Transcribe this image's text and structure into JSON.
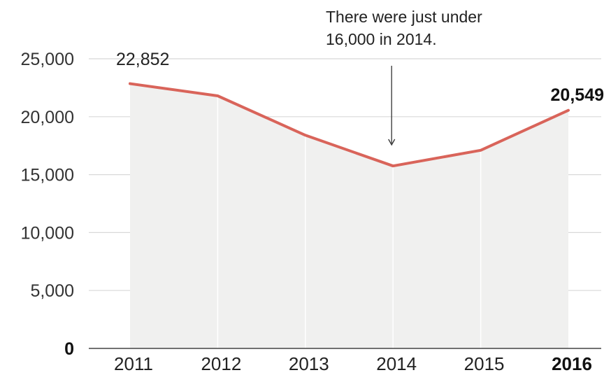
{
  "chart_data": {
    "type": "area",
    "title": "",
    "xlabel": "",
    "ylabel": "",
    "x": [
      2011,
      2012,
      2013,
      2014,
      2015,
      2016
    ],
    "categories": [
      "2011",
      "2012",
      "2013",
      "2014",
      "2015",
      "2016"
    ],
    "values": [
      22852,
      21800,
      18400,
      15750,
      17100,
      20549
    ],
    "ylim": [
      0,
      25000
    ],
    "yticks": [
      0,
      5000,
      10000,
      15000,
      20000,
      25000
    ],
    "ytick_labels": [
      "0",
      "5,000",
      "10,000",
      "15,000",
      "20,000",
      "25,000"
    ],
    "grid": true,
    "highlighted_category": "2016",
    "data_labels": [
      {
        "category": "2011",
        "text": "22,852"
      },
      {
        "category": "2016",
        "text": "20,549"
      }
    ],
    "annotation": {
      "category": "2014",
      "lines": [
        "There were just under",
        "16,000 in 2014."
      ]
    },
    "colors": {
      "line": "#d9645a",
      "area": "#f0f0ef",
      "grid": "#d8d8d8",
      "separator": "#ffffff",
      "baseline": "#444444",
      "arrow": "#333333"
    }
  }
}
